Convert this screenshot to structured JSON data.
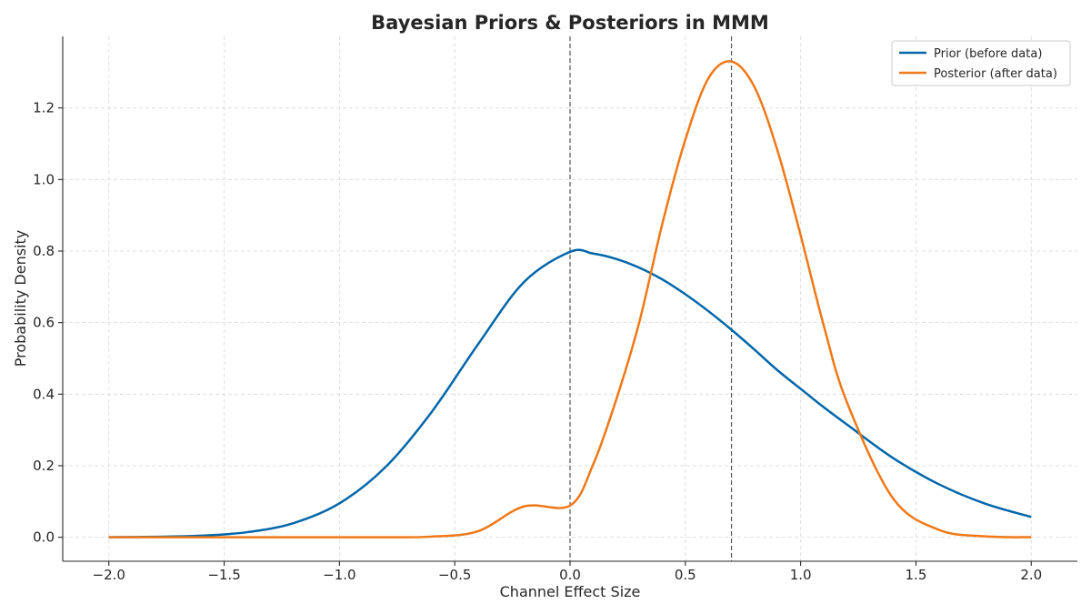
{
  "chart_data": {
    "type": "line",
    "title": "Bayesian Priors & Posteriors in MMM",
    "xlabel": "Channel Effect Size",
    "ylabel": "Probability Density",
    "xlim": [
      -2.2,
      2.2
    ],
    "ylim": [
      -0.067,
      1.4
    ],
    "xticks": [
      -2.0,
      -1.5,
      -1.0,
      -0.5,
      0.0,
      0.5,
      1.0,
      1.5,
      2.0
    ],
    "xtick_labels": [
      "−2.0",
      "−1.5",
      "−1.0",
      "−0.5",
      "0.0",
      "0.5",
      "1.0",
      "1.5",
      "2.0"
    ],
    "yticks": [
      0.0,
      0.2,
      0.4,
      0.6,
      0.8,
      1.0,
      1.2
    ],
    "ytick_labels": [
      "0.0",
      "0.2",
      "0.4",
      "0.6",
      "0.8",
      "1.0",
      "1.2"
    ],
    "grid": true,
    "legend_position": "top-right",
    "reference_lines_x": [
      0.0,
      0.7
    ],
    "x": [
      -2.0,
      -1.8,
      -1.6,
      -1.4,
      -1.2,
      -1.0,
      -0.8,
      -0.6,
      -0.4,
      -0.2,
      0.0,
      0.1,
      0.2,
      0.3,
      0.4,
      0.5,
      0.6,
      0.7,
      0.8,
      0.9,
      1.0,
      1.1,
      1.2,
      1.4,
      1.6,
      1.8,
      2.0
    ],
    "series": [
      {
        "name": "Prior (before data)",
        "color": "#0066aa",
        "values": [
          0.0001,
          0.0006,
          0.0022,
          0.0071,
          0.0197,
          0.0474,
          0.0982,
          0.1752,
          0.2692,
          0.3566,
          0.3989,
          0.3965,
          0.389,
          0.3768,
          0.3603,
          0.3396,
          0.316,
          0.29,
          0.2622,
          0.2333,
          0.2075,
          0.1818,
          0.1578,
          0.1109,
          0.074,
          0.047,
          0.0284
        ],
        "scale": 2.0
      },
      {
        "name": "Posterior (after data)",
        "color": "#f07818",
        "values": [
          0.0,
          0.0,
          0.0,
          0.0,
          0.0,
          0.0,
          0.0001,
          0.0018,
          0.0167,
          0.0862,
          0.0886,
          0.203,
          0.3841,
          0.6004,
          0.8758,
          1.1113,
          1.2828,
          1.3298,
          1.2582,
          1.0801,
          0.8441,
          0.5921,
          0.3783,
          0.1094,
          0.0207,
          0.0025,
          0.0002
        ]
      }
    ]
  }
}
